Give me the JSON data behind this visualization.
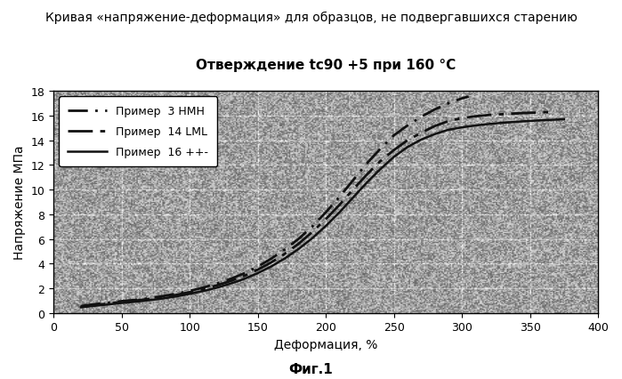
{
  "title_line1": "Кривая «напряжение-деформация» для образцов, не подвергавшихся старению",
  "title_line2": "Отверждение tc90 +5 при 160 °C",
  "xlabel": "Деформация, %",
  "ylabel": "Напряжение МПа",
  "fig_label": "Фиг.1",
  "xlim": [
    0,
    400
  ],
  "ylim": [
    0,
    18
  ],
  "xticks": [
    0,
    50,
    100,
    150,
    200,
    250,
    300,
    350,
    400
  ],
  "yticks": [
    0,
    2,
    4,
    6,
    8,
    10,
    12,
    14,
    16,
    18
  ],
  "legend_entries": [
    {
      "label": "Пример  3 НМН",
      "color": "#111111",
      "linewidth": 2.0,
      "dashes": [
        8,
        3,
        1,
        3
      ]
    },
    {
      "label": "Пример  14 LML",
      "color": "#111111",
      "linewidth": 2.0,
      "dashes": [
        10,
        3,
        2,
        3
      ]
    },
    {
      "label": "Пример  16 ++-",
      "color": "#111111",
      "linewidth": 1.8,
      "dashes": []
    }
  ],
  "curves": [
    {
      "x": [
        20,
        30,
        40,
        50,
        60,
        70,
        80,
        90,
        100,
        110,
        120,
        130,
        140,
        150,
        160,
        170,
        180,
        190,
        200,
        210,
        220,
        230,
        240,
        250,
        260,
        270,
        280,
        290,
        300,
        305
      ],
      "y": [
        0.55,
        0.7,
        0.82,
        0.95,
        1.05,
        1.18,
        1.35,
        1.55,
        1.78,
        2.05,
        2.38,
        2.75,
        3.2,
        3.75,
        4.4,
        5.15,
        6.0,
        7.0,
        8.15,
        9.4,
        10.75,
        12.1,
        13.3,
        14.4,
        15.2,
        15.9,
        16.5,
        17.0,
        17.4,
        17.55
      ]
    },
    {
      "x": [
        20,
        30,
        40,
        50,
        60,
        70,
        80,
        90,
        100,
        110,
        120,
        130,
        140,
        150,
        160,
        170,
        180,
        190,
        200,
        210,
        220,
        230,
        240,
        250,
        260,
        270,
        280,
        290,
        300,
        310,
        320,
        330,
        340,
        350,
        360,
        365
      ],
      "y": [
        0.5,
        0.62,
        0.75,
        0.88,
        0.99,
        1.12,
        1.27,
        1.45,
        1.68,
        1.93,
        2.23,
        2.58,
        3.0,
        3.5,
        4.1,
        4.8,
        5.6,
        6.55,
        7.6,
        8.75,
        10.0,
        11.2,
        12.3,
        13.2,
        14.0,
        14.6,
        15.15,
        15.55,
        15.8,
        15.95,
        16.05,
        16.12,
        16.18,
        16.23,
        16.27,
        16.3
      ]
    },
    {
      "x": [
        20,
        30,
        40,
        50,
        60,
        70,
        80,
        90,
        100,
        110,
        120,
        130,
        140,
        150,
        160,
        170,
        180,
        190,
        200,
        210,
        220,
        230,
        240,
        250,
        260,
        270,
        280,
        290,
        300,
        310,
        320,
        330,
        340,
        350,
        360,
        370,
        375
      ],
      "y": [
        0.45,
        0.57,
        0.68,
        0.8,
        0.9,
        1.02,
        1.16,
        1.33,
        1.54,
        1.77,
        2.04,
        2.37,
        2.75,
        3.22,
        3.77,
        4.42,
        5.18,
        6.05,
        7.05,
        8.15,
        9.35,
        10.55,
        11.65,
        12.65,
        13.45,
        14.05,
        14.5,
        14.85,
        15.05,
        15.2,
        15.32,
        15.42,
        15.5,
        15.57,
        15.63,
        15.68,
        15.7
      ]
    }
  ],
  "background_color": "#b8b8b8",
  "fig_background_color": "#ffffff",
  "grid_color": "#ffffff",
  "noise_alpha": 0.45,
  "title_fontsize": 10,
  "subtitle_fontsize": 11,
  "axis_label_fontsize": 10,
  "tick_fontsize": 9,
  "legend_fontsize": 9
}
